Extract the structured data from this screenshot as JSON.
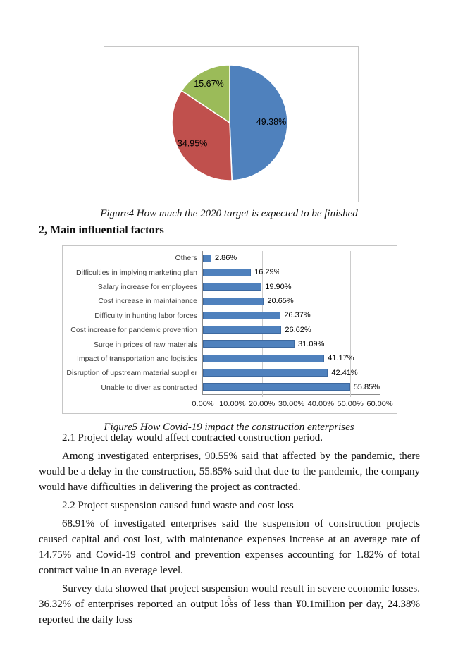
{
  "page": {
    "number": "3"
  },
  "figure4": {
    "caption": "Figure4 How much the 2020 target is expected to be finished"
  },
  "section2": {
    "heading": "2, Main influential factors"
  },
  "figure5": {
    "caption": "Figure5 How Covid-19 impact the construction enterprises"
  },
  "paragraphs": [
    "2.1 Project delay would affect contracted construction period.",
    "Among investigated enterprises, 90.55% said that affected by the pandemic, there would be a delay in the construction, 55.85% said that due to the pandemic, the company would have difficulties in delivering the project as contracted.",
    "2.2 Project suspension caused fund waste and cost loss",
    "68.91% of investigated enterprises said the suspension of construction projects caused capital and cost lost, with maintenance expenses increase at an average rate of 14.75% and Covid-19 control and prevention expenses accounting for 1.82% of total contract value in an average level.",
    "Survey data showed that project suspension would result in severe economic losses. 36.32% of enterprises reported an output loss of less than ¥0.1million per day, 24.38% reported the daily loss"
  ],
  "chart_data": [
    {
      "type": "pie",
      "caption": "Figure4 How much the 2020 target is expected to be finished",
      "labels": [
        "49.38%",
        "34.95%",
        "15.67%"
      ],
      "values": [
        49.38,
        34.95,
        15.67
      ],
      "colors": [
        "#4f81bd",
        "#c0504d",
        "#9bbb59"
      ],
      "start_angle_deg_from_top": 0,
      "direction": "clockwise",
      "legend": "none"
    },
    {
      "type": "bar",
      "orientation": "horizontal",
      "caption": "Figure5 How Covid-19 impact the construction enterprises",
      "categories": [
        "Others",
        "Difficulties in implying marketing plan",
        "Salary increase for employees",
        "Cost increase in maintainance",
        "Difficulty in hunting labor forces",
        "Cost increase for pandemic provention",
        "Surge in prices of raw materials",
        "Impact of transportation and logistics",
        "Disruption of upstream material supplier",
        "Unable to diver as contracted"
      ],
      "values": [
        2.86,
        16.29,
        19.9,
        20.65,
        26.37,
        26.62,
        31.09,
        41.17,
        42.41,
        55.85
      ],
      "value_labels": [
        "2.86%",
        "16.29%",
        "19.90%",
        "20.65%",
        "26.37%",
        "26.62%",
        "31.09%",
        "41.17%",
        "42.41%",
        "55.85%"
      ],
      "x_ticks": [
        "0.00%",
        "10.00%",
        "20.00%",
        "30.00%",
        "40.00%",
        "50.00%",
        "60.00%"
      ],
      "xlim": [
        0,
        60
      ],
      "bar_color": "#4f81bd",
      "grid": true,
      "legend": "none"
    }
  ]
}
